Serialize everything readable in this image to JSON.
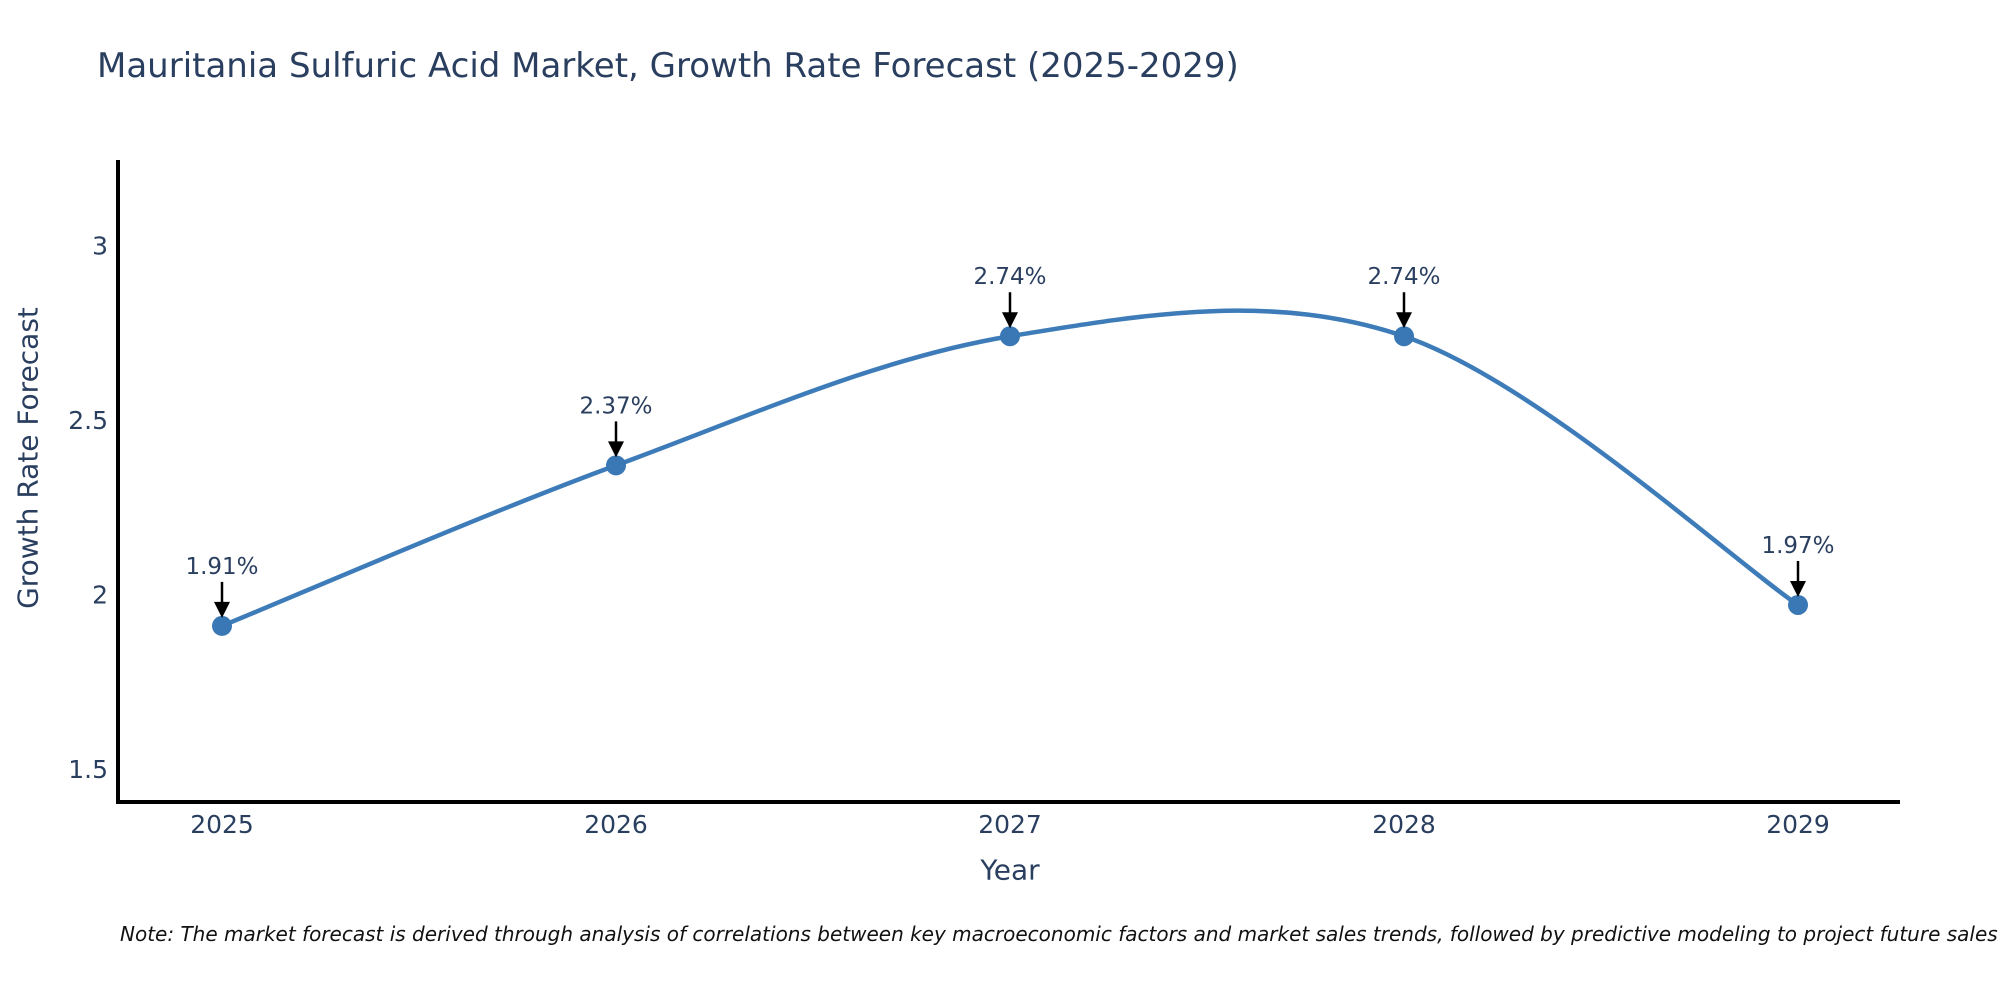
{
  "title": "Mauritania Sulfuric Acid Market, Growth Rate Forecast (2025-2029)",
  "note": "Note: The market forecast is derived through analysis of correlations between key macroeconomic factors and market sales trends, followed by predictive modeling to project future sales",
  "chart_data": {
    "type": "line",
    "line_shape": "spline",
    "title": "Mauritania Sulfuric Acid Market, Growth Rate Forecast (2025-2029)",
    "xlabel": "Year",
    "ylabel": "Growth Rate Forecast",
    "x": [
      2025,
      2026,
      2027,
      2028,
      2029
    ],
    "x_tick_labels": [
      "2025",
      "2026",
      "2027",
      "2028",
      "2029"
    ],
    "values": [
      1.91,
      2.37,
      2.74,
      2.74,
      1.97
    ],
    "point_labels": [
      "1.91%",
      "2.37%",
      "2.74%",
      "2.74%",
      "1.97%"
    ],
    "y_ticks": [
      1.5,
      2,
      2.5,
      3
    ],
    "y_tick_labels": [
      "1.5",
      "2",
      "2.5",
      "3"
    ],
    "ylim": [
      1.4,
      3.25
    ],
    "xlim": [
      2024.7,
      2029.3
    ],
    "grid": false,
    "legend": "none",
    "markers": true,
    "annotations_have_arrows": true,
    "colors": {
      "line": "#3d7cb8",
      "marker": "#3a78b5",
      "axis": "#000000",
      "tick_text": "#2a3f5f",
      "annotation_text": "#2a3f5f",
      "arrow": "#000000",
      "title_text": "#2a3f5f",
      "background": "#ffffff"
    }
  }
}
